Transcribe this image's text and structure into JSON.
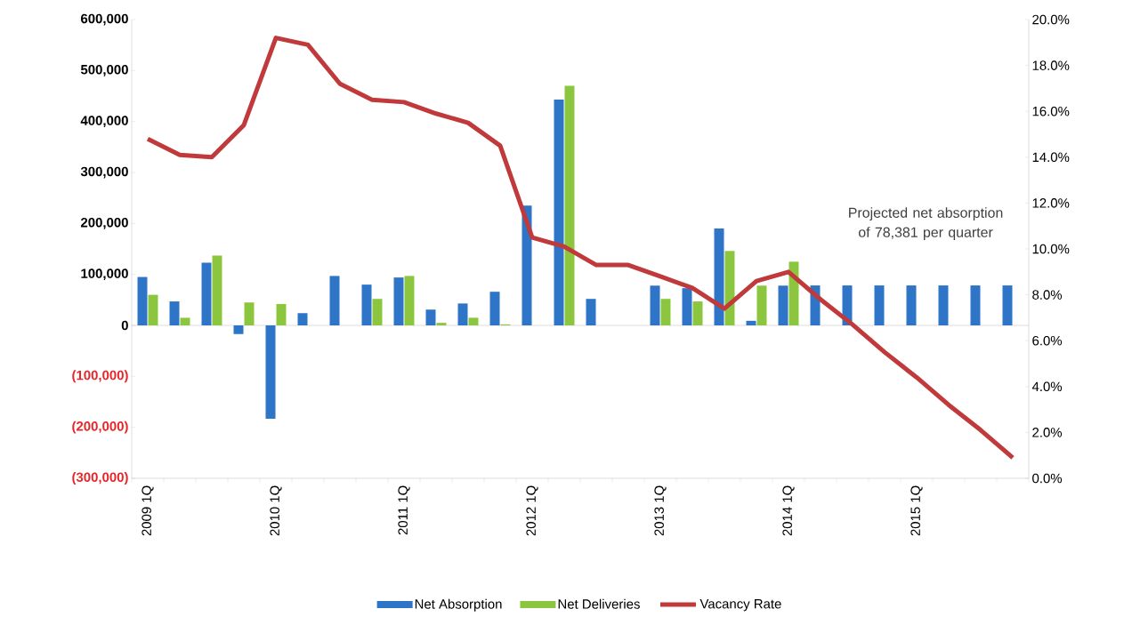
{
  "chart_data": {
    "type": "bar",
    "categories": [
      "2009 1Q",
      null,
      null,
      null,
      "2010 1Q",
      null,
      null,
      null,
      "2011 1Q",
      null,
      null,
      null,
      "2012 1Q",
      null,
      null,
      null,
      "2013 1Q",
      null,
      null,
      null,
      "2014 1Q",
      null,
      null,
      null,
      "2015 1Q",
      null,
      null,
      null
    ],
    "series": [
      {
        "name": "Net Absorption",
        "color": "#2e75c8",
        "values": [
          95000,
          47000,
          123000,
          -17000,
          -183000,
          24000,
          97000,
          80000,
          94000,
          31000,
          43000,
          66000,
          235000,
          443000,
          52000,
          0,
          78000,
          73000,
          190000,
          9000,
          78000,
          78381,
          78381,
          78381,
          78381,
          78381,
          78381,
          78381
        ]
      },
      {
        "name": "Net Deliveries",
        "color": "#8cc63f",
        "values": [
          60000,
          15000,
          137000,
          45000,
          42000,
          0,
          0,
          52000,
          97000,
          5000,
          15000,
          2000,
          0,
          470000,
          0,
          0,
          52000,
          47000,
          146000,
          78000,
          125000,
          null,
          null,
          null,
          null,
          null,
          null,
          null
        ]
      },
      {
        "name": "Vacancy Rate",
        "type": "line",
        "axis": "y2",
        "color": "#c0393b",
        "values": [
          14.8,
          14.1,
          14.0,
          15.4,
          19.2,
          18.9,
          17.2,
          16.5,
          16.4,
          15.9,
          15.5,
          14.5,
          10.5,
          10.1,
          9.3,
          9.3,
          8.8,
          8.3,
          7.4,
          8.6,
          9.0,
          7.8,
          6.7,
          5.5,
          4.4,
          3.2,
          2.1,
          0.9
        ]
      }
    ],
    "ylim": [
      -300000,
      600000
    ],
    "yticks": [
      {
        "value": -300000,
        "label": "(300,000)"
      },
      {
        "value": -200000,
        "label": "(200,000)"
      },
      {
        "value": -100000,
        "label": "(100,000)"
      },
      {
        "value": 0,
        "label": "0"
      },
      {
        "value": 100000,
        "label": "100,000"
      },
      {
        "value": 200000,
        "label": "200,000"
      },
      {
        "value": 300000,
        "label": "300,000"
      },
      {
        "value": 400000,
        "label": "400,000"
      },
      {
        "value": 500000,
        "label": "500,000"
      },
      {
        "value": 600000,
        "label": "600,000"
      }
    ],
    "y2lim": [
      0,
      20
    ],
    "y2ticks": [
      {
        "value": 0,
        "label": "0.0%"
      },
      {
        "value": 2,
        "label": "2.0%"
      },
      {
        "value": 4,
        "label": "4.0%"
      },
      {
        "value": 6,
        "label": "6.0%"
      },
      {
        "value": 8,
        "label": "8.0%"
      },
      {
        "value": 10,
        "label": "10.0%"
      },
      {
        "value": 12,
        "label": "12.0%"
      },
      {
        "value": 14,
        "label": "14.0%"
      },
      {
        "value": 16,
        "label": "16.0%"
      },
      {
        "value": 18,
        "label": "18.0%"
      },
      {
        "value": 20,
        "label": "20.0%"
      }
    ],
    "annotations": [
      "Projected net absorption of 78,381 per quarter"
    ],
    "legend": "bottom"
  }
}
